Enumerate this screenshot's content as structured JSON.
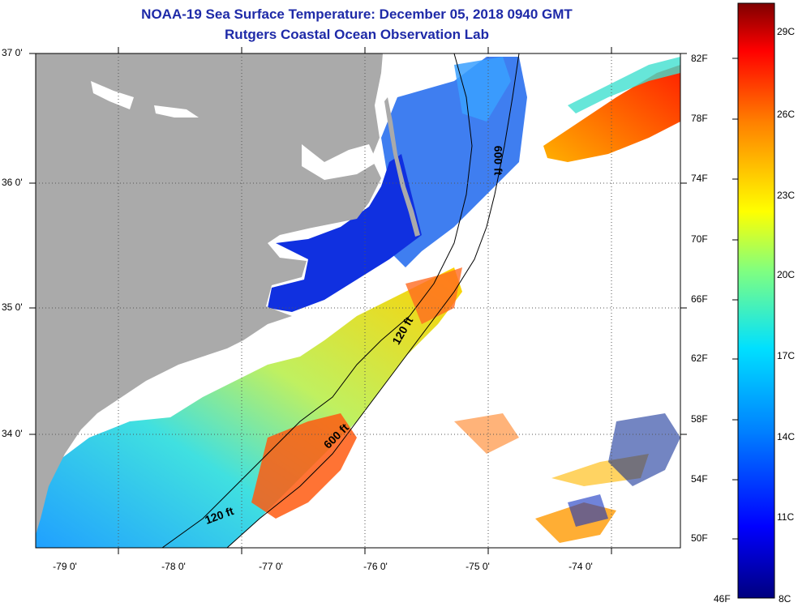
{
  "title": {
    "line1": "NOAA-19 Sea Surface Temperature:  December 05, 2018 0940 GMT",
    "line2": "Rutgers Coastal Ocean Observation Lab"
  },
  "latitude_labels": [
    "37 0'",
    "36 0'",
    "35 0'",
    "34 0'"
  ],
  "longitude_labels": [
    "-79 0'",
    "-78 0'",
    "-77 0'",
    "-76 0'",
    "-75 0'",
    "-74 0'"
  ],
  "isobaths": {
    "shelf_120_south": "120 ft",
    "shelf_120_north": "120 ft",
    "slope_600_south": "600 ft",
    "slope_600_north": "600 ft"
  },
  "colorbar": {
    "fahrenheit": [
      "82F",
      "78F",
      "74F",
      "70F",
      "66F",
      "62F",
      "58F",
      "54F",
      "50F",
      "46F"
    ],
    "celsius": [
      "29C",
      "26C",
      "23C",
      "20C",
      "17C",
      "14C",
      "11C",
      "8C"
    ],
    "min_label_f": "46F",
    "min_label_c": "8C",
    "colors": [
      "#00007f",
      "#0000ff",
      "#0080ff",
      "#00e0ff",
      "#80ff80",
      "#ffff00",
      "#ff8000",
      "#ff0000",
      "#7f0000"
    ]
  },
  "colors": {
    "land": "#aaaaaa",
    "title": "#1e2aa8",
    "cloud": "#ffffff"
  }
}
